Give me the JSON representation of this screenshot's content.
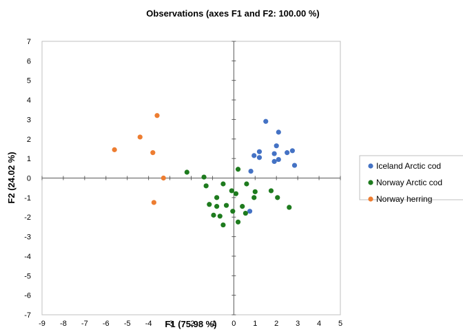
{
  "chart_data": {
    "type": "scatter",
    "title": "Observations (axes F1 and F2: 100.00 %)",
    "xlabel": "F1 (75.98 %)",
    "ylabel": "F2 (24.02 %)",
    "xlim": [
      -9,
      5
    ],
    "ylim": [
      -7,
      7
    ],
    "xticks": [
      "-9",
      "-8",
      "-7",
      "-6",
      "-5",
      "-4",
      "-3",
      "-2",
      "-1",
      "0",
      "1",
      "2",
      "3",
      "4",
      "5"
    ],
    "yticks": [
      "-7",
      "-6",
      "-5",
      "-4",
      "-3",
      "-2",
      "-1",
      "0",
      "1",
      "2",
      "3",
      "4",
      "5",
      "6",
      "7"
    ],
    "grid": false,
    "legend_position": "right",
    "series": [
      {
        "name": "Iceland Arctic cod",
        "color": "#4472C4",
        "points": [
          [
            1.5,
            2.9
          ],
          [
            2.1,
            2.35
          ],
          [
            2.0,
            1.65
          ],
          [
            1.2,
            1.35
          ],
          [
            0.95,
            1.15
          ],
          [
            1.2,
            1.05
          ],
          [
            1.9,
            1.25
          ],
          [
            2.5,
            1.3
          ],
          [
            2.75,
            1.4
          ],
          [
            2.1,
            0.95
          ],
          [
            1.9,
            0.85
          ],
          [
            2.85,
            0.65
          ],
          [
            0.8,
            0.35
          ],
          [
            0.75,
            -1.7
          ]
        ]
      },
      {
        "name": "Norway Arctic cod",
        "color": "#1E7B1E",
        "points": [
          [
            -2.2,
            0.3
          ],
          [
            -1.4,
            0.05
          ],
          [
            0.2,
            0.45
          ],
          [
            -1.3,
            -0.4
          ],
          [
            -0.5,
            -0.3
          ],
          [
            0.6,
            -0.3
          ],
          [
            -0.1,
            -0.65
          ],
          [
            0.1,
            -0.8
          ],
          [
            1.75,
            -0.65
          ],
          [
            1.0,
            -0.7
          ],
          [
            0.95,
            -1.0
          ],
          [
            2.05,
            -1.0
          ],
          [
            -0.8,
            -1.0
          ],
          [
            -1.15,
            -1.35
          ],
          [
            -0.8,
            -1.45
          ],
          [
            -0.35,
            -1.4
          ],
          [
            0.4,
            -1.45
          ],
          [
            2.6,
            -1.5
          ],
          [
            -0.05,
            -1.7
          ],
          [
            0.55,
            -1.8
          ],
          [
            -0.95,
            -1.9
          ],
          [
            -0.65,
            -1.95
          ],
          [
            0.2,
            -2.25
          ],
          [
            -0.5,
            -2.4
          ]
        ]
      },
      {
        "name": "Norway herring",
        "color": "#ED7D31",
        "points": [
          [
            -3.6,
            3.2
          ],
          [
            -4.4,
            2.1
          ],
          [
            -5.6,
            1.45
          ],
          [
            -3.8,
            1.3
          ],
          [
            -3.3,
            0.0
          ],
          [
            -3.75,
            -1.25
          ]
        ]
      }
    ]
  }
}
